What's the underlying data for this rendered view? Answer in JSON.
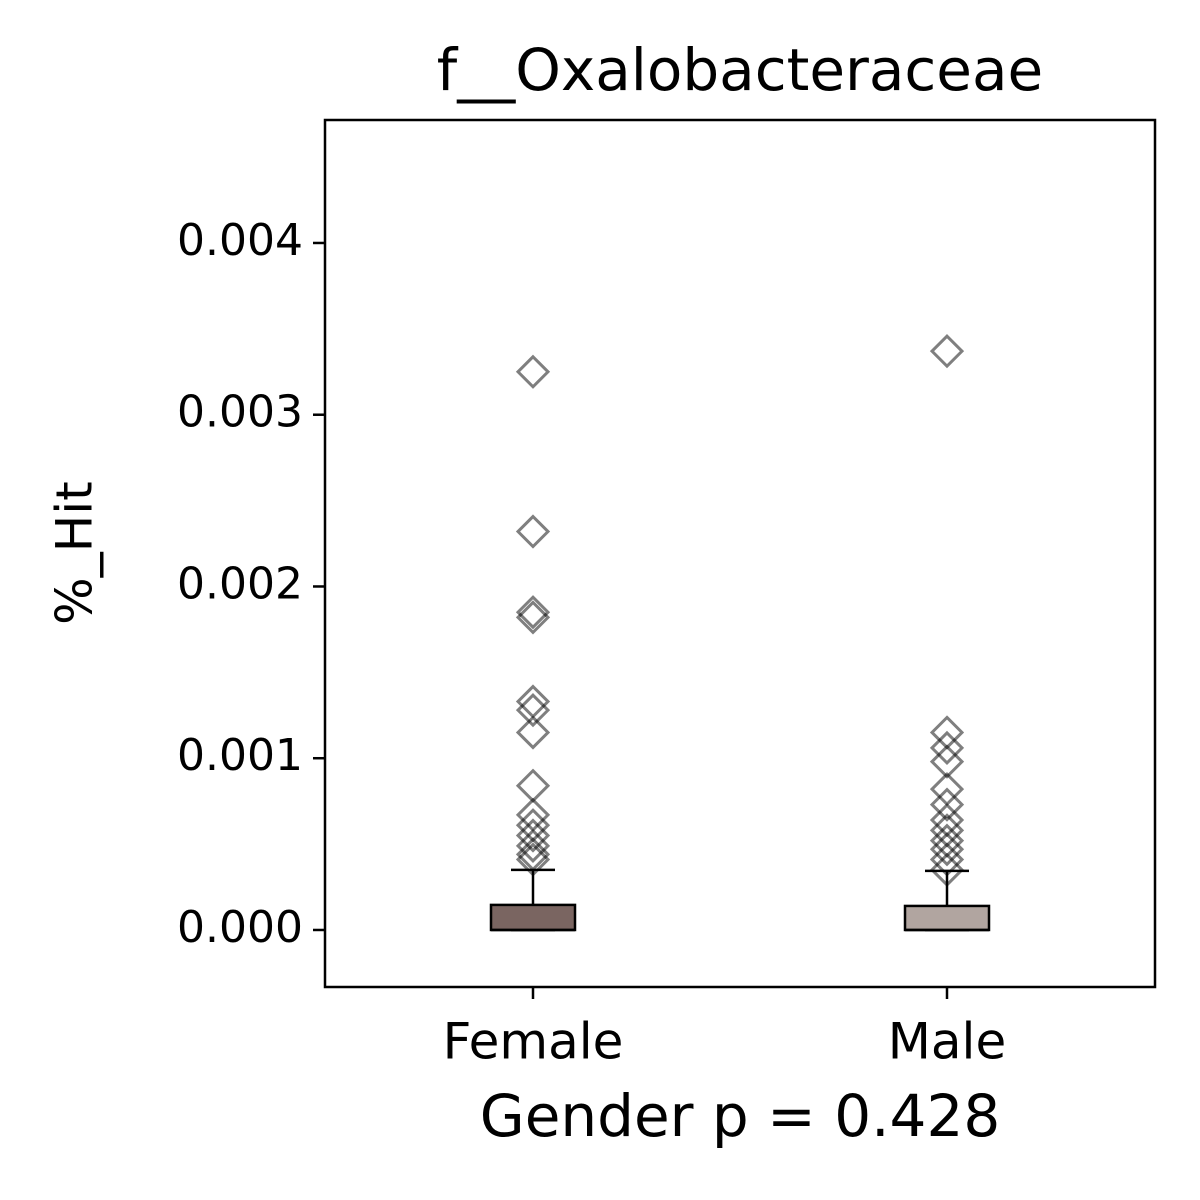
{
  "chart_data": {
    "type": "box",
    "title": "f__Oxalobacteraceae",
    "xlabel": "Gender p = 0.428",
    "ylabel": "%_Hit",
    "categories": [
      "Female",
      "Male"
    ],
    "boxes": [
      {
        "color": "#7a6561",
        "min": 0,
        "q1": 0,
        "median": 0,
        "q3": 0.000146,
        "max": 0.00035,
        "outliers": [
          0.00325,
          0.00232,
          0.00185,
          0.00182,
          0.00133,
          0.00128,
          0.00115,
          0.00084,
          0.00067,
          0.00061,
          0.00055,
          0.00049,
          0.00044,
          0.00041
        ]
      },
      {
        "color": "#b1a5a0",
        "min": 0,
        "q1": 0,
        "median": 0,
        "q3": 0.00014,
        "max": 0.000344,
        "outliers": [
          0.00337,
          0.00115,
          0.00106,
          0.00098,
          0.00082,
          0.00073,
          0.00064,
          0.00058,
          0.00052,
          0.00047,
          0.00041,
          0.00035
        ]
      }
    ],
    "ylim": [
      -0.000332,
      0.004716
    ],
    "yticks": [
      {
        "value": 0,
        "label": "0.000"
      },
      {
        "value": 0.001,
        "label": "0.001"
      },
      {
        "value": 0.002,
        "label": "0.002"
      },
      {
        "value": 0.003,
        "label": "0.003"
      },
      {
        "value": 0.004,
        "label": "0.004"
      }
    ]
  }
}
